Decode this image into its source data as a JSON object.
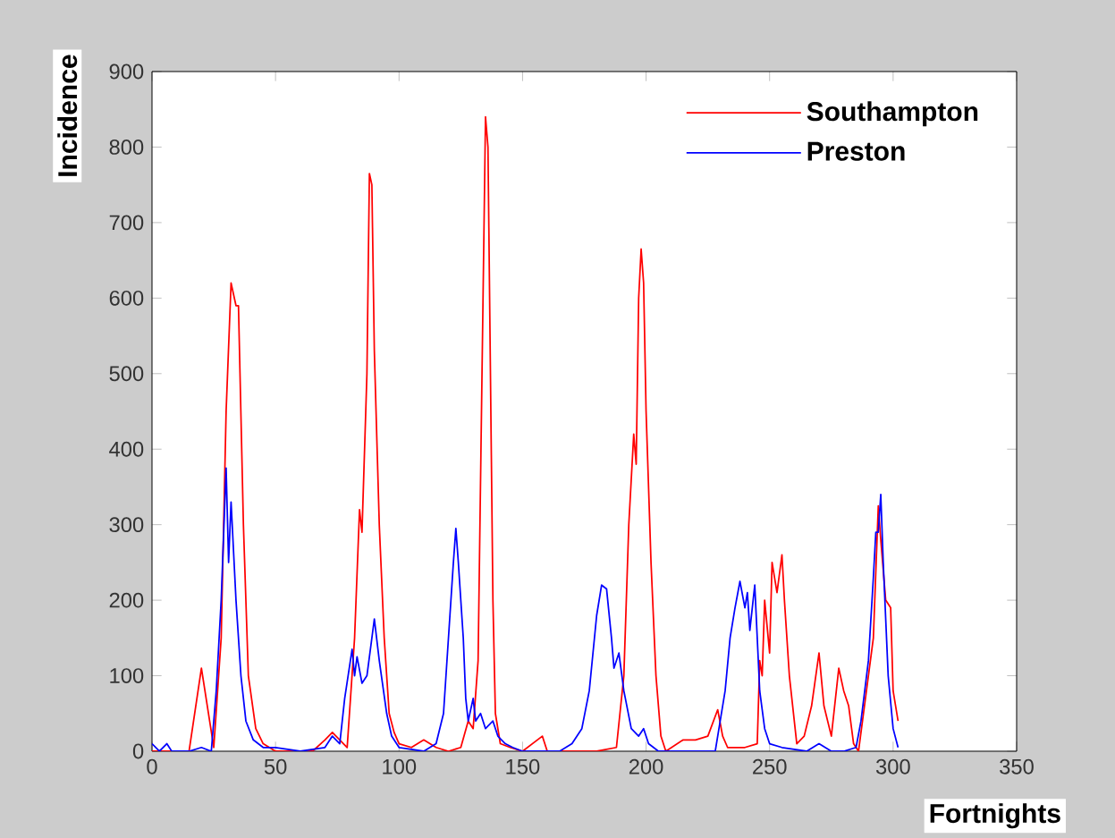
{
  "chart_data": {
    "type": "line",
    "xlabel": "Fortnights",
    "ylabel": "Incidence",
    "xlim": [
      0,
      350
    ],
    "xticks": [
      0,
      50,
      100,
      150,
      200,
      250,
      300,
      350
    ],
    "ylim": [
      0,
      900
    ],
    "yticks": [
      0,
      100,
      200,
      300,
      400,
      500,
      600,
      700,
      800,
      900
    ],
    "grid": false,
    "legend": "top right",
    "marker": "none",
    "line_style": "solid",
    "series": [
      {
        "name": "Southampton",
        "color": "#ff0000",
        "x": [
          0,
          15,
          20,
          25,
          28,
          30,
          32,
          34,
          35,
          37,
          39,
          42,
          45,
          50,
          65,
          70,
          73,
          76,
          79,
          82,
          84,
          85,
          87,
          88,
          89,
          90,
          92,
          94,
          96,
          98,
          100,
          105,
          110,
          115,
          120,
          125,
          128,
          130,
          132,
          134,
          135,
          136,
          137,
          138,
          139,
          141,
          145,
          150,
          158,
          160,
          180,
          188,
          191,
          193,
          195,
          196,
          197,
          198,
          199,
          200,
          202,
          204,
          206,
          208,
          215,
          220,
          225,
          229,
          231,
          233,
          240,
          245,
          246,
          247,
          248,
          250,
          251,
          253,
          255,
          256,
          258,
          261,
          264,
          267,
          270,
          272,
          275,
          278,
          280,
          282,
          284,
          286,
          288,
          290,
          292,
          294,
          295,
          297,
          299,
          300,
          302
        ],
        "values": [
          0,
          0,
          110,
          5,
          150,
          450,
          620,
          590,
          590,
          300,
          100,
          30,
          10,
          0,
          0,
          15,
          25,
          15,
          5,
          150,
          320,
          290,
          500,
          765,
          750,
          530,
          300,
          150,
          50,
          25,
          10,
          5,
          15,
          5,
          0,
          5,
          40,
          30,
          120,
          600,
          840,
          800,
          500,
          200,
          50,
          10,
          5,
          0,
          20,
          0,
          0,
          5,
          100,
          300,
          420,
          380,
          600,
          665,
          620,
          450,
          250,
          100,
          20,
          0,
          15,
          15,
          20,
          55,
          20,
          5,
          5,
          10,
          120,
          100,
          200,
          130,
          250,
          210,
          260,
          200,
          100,
          10,
          20,
          60,
          130,
          60,
          20,
          110,
          80,
          60,
          10,
          0,
          50,
          100,
          150,
          325,
          280,
          200,
          190,
          80,
          40
        ]
      },
      {
        "name": "Preston",
        "color": "#0000ff",
        "x": [
          0,
          3,
          6,
          8,
          15,
          20,
          24,
          26,
          28,
          30,
          31,
          32,
          34,
          36,
          38,
          41,
          45,
          50,
          60,
          70,
          73,
          76,
          78,
          81,
          82,
          83,
          85,
          87,
          89,
          90,
          92,
          95,
          97,
          100,
          110,
          115,
          118,
          120,
          122,
          123,
          124,
          126,
          127,
          128,
          130,
          131,
          133,
          135,
          138,
          140,
          143,
          146,
          150,
          165,
          170,
          174,
          177,
          180,
          182,
          184,
          186,
          187,
          189,
          191,
          194,
          197,
          199,
          201,
          205,
          220,
          228,
          232,
          234,
          236,
          238,
          240,
          241,
          242,
          244,
          246,
          248,
          250,
          255,
          265,
          270,
          275,
          280,
          285,
          287,
          290,
          292,
          293,
          294,
          295,
          296,
          298,
          300,
          302
        ],
        "values": [
          10,
          0,
          10,
          0,
          0,
          5,
          0,
          80,
          200,
          375,
          250,
          330,
          200,
          100,
          40,
          15,
          5,
          5,
          0,
          5,
          20,
          10,
          70,
          135,
          100,
          125,
          90,
          100,
          150,
          175,
          120,
          50,
          20,
          5,
          0,
          10,
          50,
          150,
          250,
          295,
          250,
          150,
          70,
          40,
          70,
          40,
          50,
          30,
          40,
          20,
          10,
          5,
          0,
          0,
          10,
          30,
          80,
          180,
          220,
          215,
          150,
          110,
          130,
          80,
          30,
          20,
          30,
          10,
          0,
          0,
          0,
          80,
          150,
          190,
          225,
          190,
          210,
          160,
          220,
          80,
          30,
          10,
          5,
          0,
          10,
          0,
          0,
          5,
          40,
          120,
          230,
          290,
          290,
          340,
          250,
          100,
          30,
          5
        ]
      }
    ]
  }
}
